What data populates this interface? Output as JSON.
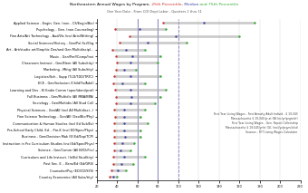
{
  "chart_data": {
    "type": "dumbbell",
    "orientation": "horizontal",
    "title": [
      "Northeastern Annual Wages by Program,",
      " 25th Percentile,",
      " Median",
      " and 75th Percentile"
    ],
    "subtitle": "One Year Date - From COI Dept Labor - Quarters 1 thru 11",
    "categories": [
      "Applied Science - Engin. Gen. (non - CS/Engin/Bio)",
      "Psychology - Gen. (non-Counseling)",
      "Fine Arts/Art Technology - Aud/Vis (incl Arts/Writing)",
      "Social Sciences/History - Gen/Pol Sci/Org",
      "Art - Art/studio art/Graphic Des/and Gen Multidiscipl...",
      "Music - Gen/Perf/Comp/Inst",
      "Classroom Instruct - Gen/Elem (All Subs/tity)",
      "Marketing - Mktg (All Subs/tity)",
      "Logistics/Sch - Supp (TLD/TDD/TRTC)",
      "ECE - Gen/Inclusion (Child/Ys/Adol)",
      "Learning and Dev - El Endin Comm (oper/ident/prof)",
      "Full Business - Gen/Multidis (All MBA/BPA)",
      "Sociology - Gen/Multidis (All Stud Col)",
      "Physical Sciences - Gen/All (incl All Multidisci...)",
      "Fine Science Technology - Gen/All (Geo/Bio/Phy)",
      "Communication & Human Studies (incl Ed Sub/Ex)",
      "Pre-School Early Child. Ed. - Pre-K (incl ED/Spec/Phys)",
      "Business - Gen/Decision Mak (El Ed/Exp/TCP)",
      "Instruction in Pro Curriculum Studies (incl Ed/Spec/Phys)",
      "Science - Gen/Comm (All BI/CI/Pcs)",
      "Curriculum and Life Instruct. (In/Ed Stud/tity)",
      "Post Sec. E. - Bsns/Ed (Ed/GRS)",
      "Counselor/Psy (ED/CD/SYS)",
      "Country Economics (All Subs/tity)"
    ],
    "color": "#aaaaaa",
    "series": [
      {
        "color": "#cc3333",
        "values": [
          85000,
          38000,
          52000,
          42000,
          35000,
          39000,
          40000,
          39000,
          37000,
          36000,
          38000,
          39000,
          39000,
          37000,
          38000,
          37000,
          37000,
          37000,
          37000,
          37000,
          36000,
          36000,
          34000,
          33000
        ]
      },
      {
        "color": "#4444aa",
        "values": [
          125000,
          62000,
          98000,
          70000,
          49000,
          55000,
          53000,
          47000,
          53000,
          45000,
          53000,
          54000,
          53000,
          47000,
          47000,
          47000,
          47000,
          48000,
          45000,
          43000,
          47000,
          44000,
          41000,
          36000
        ]
      },
      {
        "color": "#33aa33",
        "values": [
          175000,
          88000,
          160000,
          108000,
          67000,
          82000,
          80000,
          58000,
          82000,
          67000,
          88000,
          82000,
          77000,
          67000,
          63000,
          70000,
          63000,
          63000,
          57000,
          53000,
          67000,
          56000,
          49000,
          40000
        ]
      }
    ],
    "reference_lines": [
      {
        "value": 60000,
        "line_style": "solid",
        "color": "#7777bb"
      },
      {
        "value": 80000,
        "line_style": "solid",
        "color": "#7777bb"
      },
      {
        "value": 100000,
        "line_style": "dashed",
        "color": "#7777bb"
      }
    ],
    "annotations": [
      "First Year Living Wages - First Annuity Adult Individ - $ 19,343",
      "Massachusetts $ 19,345/yr,st (All Inc/yr/prgm/st)",
      "First Year Living Wages - Gen. Report Collectship",
      "Massachusetts $ 19,545/yr/st (G); (incl/yr/prgm/st/st)",
      "Sources - MIT Living Wages Calculator"
    ],
    "xlim": [
      20000,
      220000
    ],
    "xticks": [
      {
        "value": 20000,
        "label": "20"
      },
      {
        "value": 40000,
        "label": "40"
      },
      {
        "value": 60000,
        "label": "60"
      },
      {
        "value": 80000,
        "label": "80"
      },
      {
        "value": 100000,
        "label": "100"
      },
      {
        "value": 120000,
        "label": "120"
      },
      {
        "value": 140000,
        "label": "140"
      },
      {
        "value": 160000,
        "label": "160"
      },
      {
        "value": 180000,
        "label": "180"
      },
      {
        "value": 200000,
        "label": "200"
      },
      {
        "value": 220000,
        "label": "220"
      }
    ],
    "grid": true
  }
}
